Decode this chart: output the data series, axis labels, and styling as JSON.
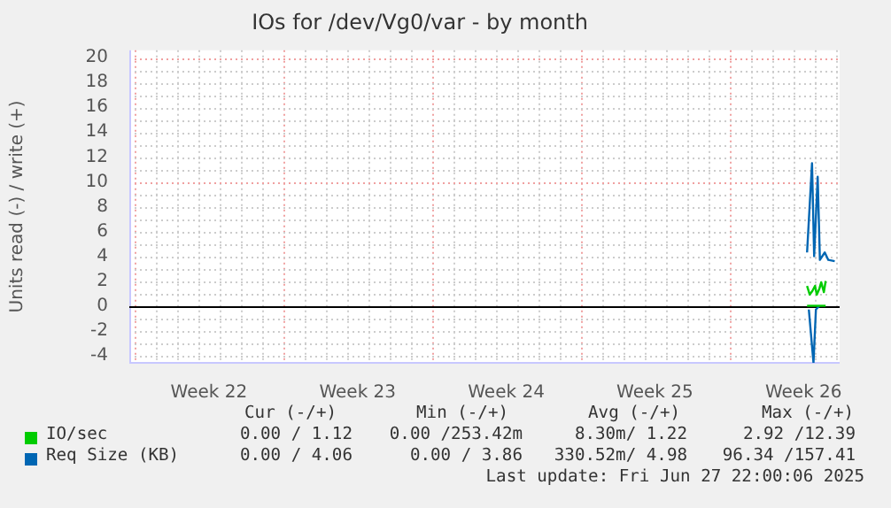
{
  "chart_data": {
    "type": "line",
    "title": "IOs for /dev/Vg0/var - by month",
    "ylabel": "Units read (-) / write (+)",
    "xlim": [
      "2025-05-25T18:00",
      "2025-06-28T04:48"
    ],
    "xticks": [
      {
        "value": "2025-05-29T12:00",
        "label": "Week 22"
      },
      {
        "value": "2025-06-05T12:00",
        "label": "Week 23"
      },
      {
        "value": "2025-06-12T12:00",
        "label": "Week 24"
      },
      {
        "value": "2025-06-19T12:00",
        "label": "Week 25"
      },
      {
        "value": "2025-06-26T12:00",
        "label": "Week 26"
      }
    ],
    "ylim": [
      -4.6,
      20.6
    ],
    "yticks": [
      -4,
      -2,
      0,
      2,
      4,
      6,
      8,
      10,
      12,
      14,
      16,
      18,
      20
    ],
    "grid": true,
    "legend": "bottom",
    "marker": "none",
    "line_style": "solid",
    "ref_lines": [
      {
        "axis": "y",
        "value": 0,
        "color": "#000000"
      }
    ],
    "series": [
      {
        "name": "IO/sec",
        "color": "#00cc00",
        "x": [
          "2025-06-26T16:00",
          "2025-06-26T19:00",
          "2025-06-26T22:00",
          "2025-06-27T01:00",
          "2025-06-27T03:00",
          "2025-06-27T06:00",
          "2025-06-27T08:00",
          "2025-06-27T11:00",
          "2025-06-27T13:00"
        ],
        "values": [
          1.6,
          0.9,
          1.2,
          1.6,
          0.9,
          1.4,
          1.9,
          1.1,
          2.0
        ]
      },
      {
        "color": "#00cc00",
        "x": [
          "2025-06-26T16:00",
          "2025-06-27T00:00",
          "2025-06-27T13:00"
        ],
        "values": [
          0,
          0,
          0
        ]
      },
      {
        "name": "Req Size (KB)",
        "color": "#0066b3",
        "x": [
          "2025-06-26T16:00",
          "2025-06-26T21:36",
          "2025-06-27T00:00",
          "2025-06-27T04:00",
          "2025-06-27T06:30",
          "2025-06-27T12:00",
          "2025-06-27T16:00",
          "2025-06-27T23:15"
        ],
        "values": [
          4.3,
          11.5,
          4.0,
          10.4,
          3.7,
          4.3,
          3.7,
          3.6
        ]
      },
      {
        "color": "#0066b3",
        "x": [
          "2025-06-26T18:00",
          "2025-06-26T23:15",
          "2025-06-27T02:00",
          "2025-06-27T06:00"
        ],
        "values": [
          -0.3,
          -4.6,
          -0.3,
          0
        ]
      }
    ],
    "annotations": [
      "Cur (-/+)",
      "Min (-/+)",
      "Avg (-/+)",
      "Max (-/+)",
      "0.00 / 1.12",
      "0.00 /253.42m",
      "8.30m/ 1.22",
      "2.92 /12.39",
      "0.00 / 4.06",
      "0.00 / 3.86",
      "330.52m/ 4.98",
      "96.34 /157.41",
      "Last update: Fri Jun 27 22:00:06 2025"
    ]
  }
}
